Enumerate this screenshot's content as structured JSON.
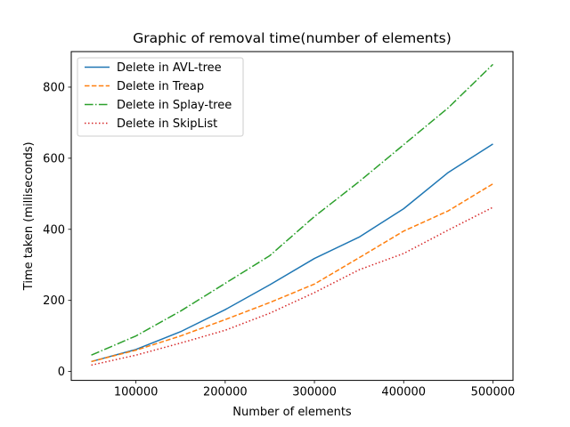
{
  "chart_data": {
    "type": "line",
    "title": "Graphic of removal time(number of elements)",
    "xlabel": "Number of elements",
    "ylabel": "Time taken (milliseconds)",
    "xlim": [
      27500,
      522500
    ],
    "ylim": [
      -25,
      900
    ],
    "x": [
      50000,
      100000,
      150000,
      200000,
      250000,
      300000,
      350000,
      400000,
      450000,
      500000
    ],
    "xticks": [
      100000,
      200000,
      300000,
      400000,
      500000
    ],
    "yticks": [
      0,
      200,
      400,
      600,
      800
    ],
    "grid": false,
    "legend_position": "upper left",
    "series": [
      {
        "name": "Delete in AVL-tree",
        "color": "#1f77b4",
        "dash": "solid",
        "values": [
          28,
          62,
          112,
          174,
          244,
          318,
          378,
          458,
          560,
          640
        ]
      },
      {
        "name": "Delete in Treap",
        "color": "#ff7f0e",
        "dash": "dashed",
        "values": [
          28,
          60,
          100,
          146,
          194,
          246,
          320,
          395,
          452,
          528
        ]
      },
      {
        "name": "Delete in Splay-tree",
        "color": "#2ca02c",
        "dash": "dashdot",
        "values": [
          46,
          100,
          170,
          248,
          326,
          436,
          534,
          638,
          742,
          864
        ]
      },
      {
        "name": "Delete in SkipList",
        "color": "#d62728",
        "dash": "dotted",
        "values": [
          18,
          46,
          80,
          116,
          164,
          222,
          286,
          332,
          398,
          462
        ]
      }
    ]
  }
}
